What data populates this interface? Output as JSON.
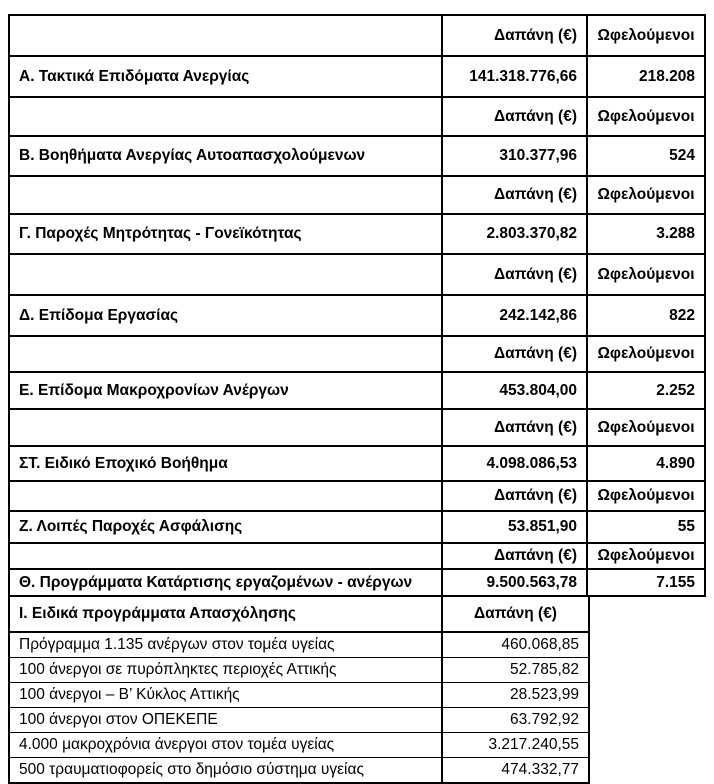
{
  "columns": {
    "expense": "Δαπάνη (€)",
    "beneficiaries": "Ωφελούμενοι"
  },
  "sections": [
    {
      "label": "Α. Τακτικά Επιδόματα Ανεργίας",
      "expense": "141.318.776,66",
      "beneficiaries": "218.208"
    },
    {
      "label": "Β. Βοηθήματα Ανεργίας Αυτοαπασχολούμενων",
      "expense": "310.377,96",
      "beneficiaries": "524"
    },
    {
      "label": "Γ. Παροχές Μητρότητας - Γονεϊκότητας",
      "expense": "2.803.370,82",
      "beneficiaries": "3.288"
    },
    {
      "label": "Δ. Επίδομα Εργασίας",
      "expense": "242.142,86",
      "beneficiaries": "822"
    },
    {
      "label": "Ε. Επίδομα Μακροχρονίων Ανέργων",
      "expense": "453.804,00",
      "beneficiaries": "2.252"
    },
    {
      "label": "ΣΤ. Ειδικό Εποχικό Βοήθημα",
      "expense": "4.098.086,53",
      "beneficiaries": "4.890"
    },
    {
      "label": "Ζ. Λοιπές Παροχές Ασφάλισης",
      "expense": "53.851,90",
      "beneficiaries": "55"
    },
    {
      "label": "Θ. Προγράμματα Κατάρτισης εργαζομένων - ανέργων",
      "expense": "9.500.563,78",
      "beneficiaries": "7.155"
    }
  ],
  "special_programs": {
    "label": "Ι. Ειδικά προγράμματα Απασχόλησης",
    "expense_header": "Δαπάνη (€)",
    "rows": [
      {
        "label": "Πρόγραμμα 1.135 ανέργων στον τομέα υγείας",
        "expense": "460.068,85"
      },
      {
        "label": "100 άνεργοι σε πυρόπληκτες περιοχές Αττικής",
        "expense": "52.785,82"
      },
      {
        "label": "100 άνεργοι – Β’ Κύκλος Αττικής",
        "expense": "28.523,99"
      },
      {
        "label": "100 άνεργοι στον ΟΠΕΚΕΠΕ",
        "expense": "63.792,92"
      },
      {
        "label": "4.000 μακροχρόνια άνεργοι στον τομέα υγείας",
        "expense": "3.217.240,55"
      },
      {
        "label": "500 τραυματιοφορείς στο δημόσιο σύστημα υγείας",
        "expense": "474.332,77"
      }
    ]
  },
  "colors": {
    "background": "#ffffff",
    "border": "#000000",
    "text": "#000000"
  }
}
